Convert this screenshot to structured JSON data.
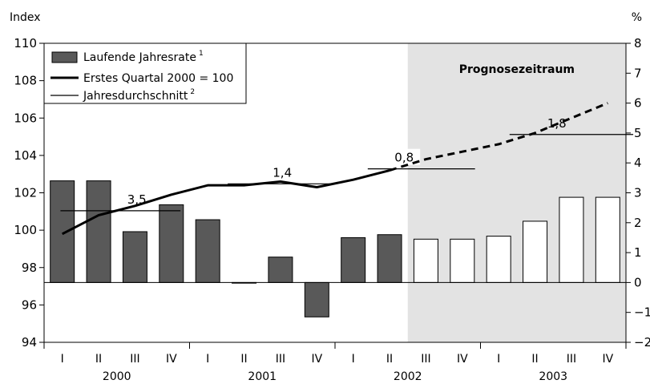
{
  "chart_data": {
    "type": "bar",
    "left_axis": {
      "label": "Index",
      "ylim": [
        94,
        110
      ],
      "ticks": [
        94,
        96,
        98,
        100,
        102,
        104,
        106,
        108,
        110
      ],
      "tick_labels": [
        "94",
        "96",
        "98",
        "100",
        "102",
        "104",
        "106",
        "108",
        "110"
      ]
    },
    "right_axis": {
      "label": "%",
      "ylim": [
        -2,
        8
      ],
      "ticks": [
        -2,
        -1,
        0,
        1,
        2,
        3,
        4,
        5,
        6,
        7,
        8
      ],
      "tick_labels": [
        "−2",
        "−1",
        "0",
        "1",
        "2",
        "3",
        "4",
        "5",
        "6",
        "7",
        "8"
      ]
    },
    "quarters": [
      "I",
      "II",
      "III",
      "IV",
      "I",
      "II",
      "III",
      "IV",
      "I",
      "II",
      "III",
      "IV",
      "I",
      "II",
      "III",
      "IV"
    ],
    "years": [
      "2000",
      "2001",
      "2002",
      "2003"
    ],
    "forecast": {
      "label": "Prognosezeitraum",
      "from_index": 10
    },
    "series": [
      {
        "name": "Laufende Jahresrate",
        "footnote": "1",
        "kind": "bar",
        "axis": "right",
        "values": [
          3.4,
          3.4,
          1.7,
          2.6,
          2.1,
          0.0,
          0.85,
          -1.15,
          1.5,
          1.6,
          1.45,
          1.45,
          1.55,
          2.05,
          2.85,
          2.85
        ],
        "colors": {
          "actual": "#595959",
          "forecast": "#ffffff"
        }
      },
      {
        "name": "Erstes Quartal 2000 = 100",
        "kind": "line",
        "axis": "left",
        "values": [
          99.8,
          100.8,
          101.3,
          101.9,
          102.4,
          102.4,
          102.6,
          102.3,
          102.7,
          103.2,
          103.8,
          104.2,
          104.6,
          105.2,
          106.0,
          106.8
        ],
        "dashed_from_index": 9
      },
      {
        "name": "Jahresdurchschnitt",
        "footnote": "2",
        "kind": "average",
        "axis": "right",
        "segments": [
          {
            "year": "2000",
            "value": 2.4,
            "label": "3,5"
          },
          {
            "year": "2001",
            "value": 3.3,
            "label": "1,4"
          },
          {
            "year": "2002",
            "value": 3.8,
            "label": "0,8"
          },
          {
            "year": "2003",
            "value": 4.95,
            "label": "1,8"
          }
        ]
      }
    ],
    "grid": false,
    "legend": {
      "position": "top-left"
    }
  }
}
